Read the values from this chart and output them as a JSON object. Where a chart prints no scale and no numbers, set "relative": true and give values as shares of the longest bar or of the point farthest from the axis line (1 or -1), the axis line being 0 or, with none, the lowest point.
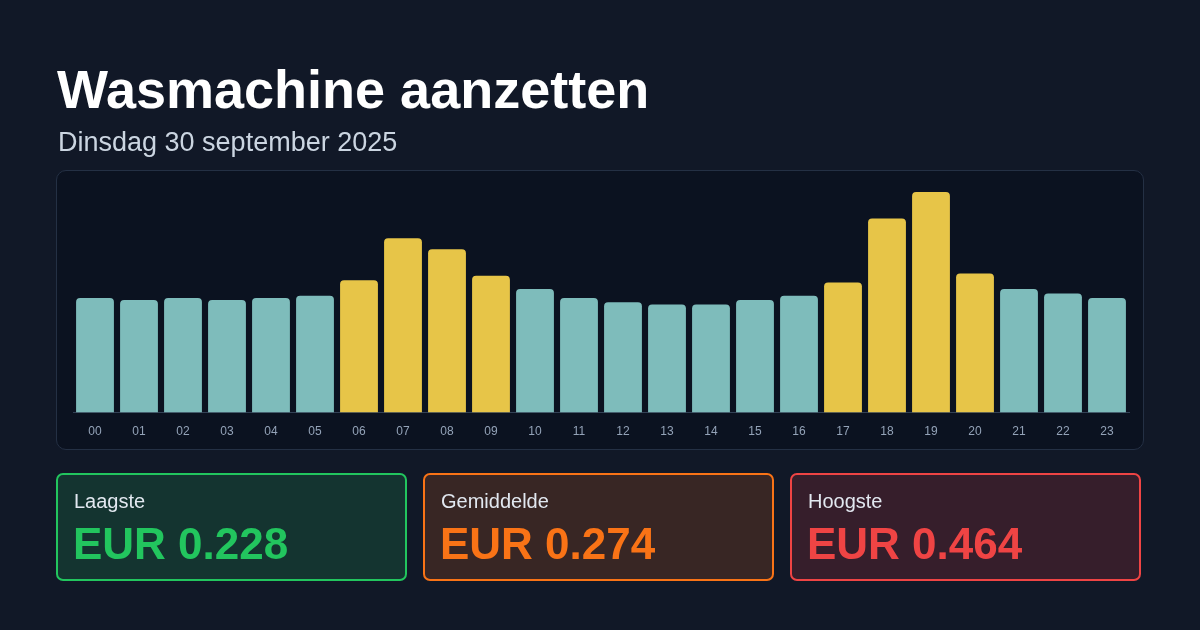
{
  "chart_data": [
    {
      "type": "bar",
      "title": "Wasmachine aanzetten",
      "subtitle": "Dinsdag 30 september 2025",
      "categories": [
        "00",
        "01",
        "02",
        "03",
        "04",
        "05",
        "06",
        "07",
        "08",
        "09",
        "10",
        "11",
        "12",
        "13",
        "14",
        "15",
        "16",
        "17",
        "18",
        "19",
        "20",
        "21",
        "22",
        "23"
      ],
      "values": [
        0.52,
        0.51,
        0.52,
        0.51,
        0.52,
        0.53,
        0.6,
        0.79,
        0.74,
        0.62,
        0.56,
        0.52,
        0.5,
        0.49,
        0.49,
        0.51,
        0.53,
        0.59,
        0.88,
        1,
        0.63,
        0.56,
        0.54,
        0.52
      ],
      "colors": [
        "#7ebcbb",
        "#7ebcbb",
        "#7ebcbb",
        "#7ebcbb",
        "#7ebcbb",
        "#7ebcbb",
        "#e7c548",
        "#e7c548",
        "#e7c548",
        "#e7c548",
        "#7ebcbb",
        "#7ebcbb",
        "#7ebcbb",
        "#7ebcbb",
        "#7ebcbb",
        "#7ebcbb",
        "#7ebcbb",
        "#e7c548",
        "#e7c548",
        "#e7c548",
        "#e7c548",
        "#7ebcbb",
        "#7ebcbb",
        "#7ebcbb"
      ],
      "relative": true
    },
    {
      "type": "other",
      "title": "Laagste",
      "annotations": [
        "EUR 0.228"
      ],
      "color": "#22c55e"
    },
    {
      "type": "other",
      "title": "Gemiddelde",
      "annotations": [
        "EUR 0.274"
      ],
      "color": "#f97316"
    },
    {
      "type": "other",
      "title": "Hoogste",
      "annotations": [
        "EUR 0.464"
      ],
      "color": "#ef4444"
    }
  ]
}
